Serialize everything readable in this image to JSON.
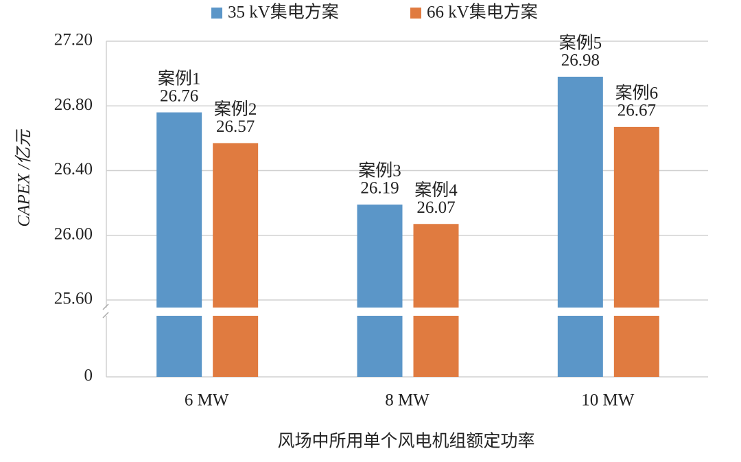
{
  "chart_data": {
    "type": "bar",
    "x_label": "风场中所用单个风电机组额定功率",
    "y_label": "CAPEX /亿元",
    "categories": [
      "6 MW",
      "8 MW",
      "10 MW"
    ],
    "series": [
      {
        "name": "35 kV集电方案",
        "color": "#5b96c8",
        "values": [
          26.76,
          26.19,
          26.98
        ],
        "point_labels": [
          "案例1",
          "案例3",
          "案例5"
        ]
      },
      {
        "name": "66 kV集电方案",
        "color": "#e07b40",
        "values": [
          26.57,
          26.07,
          26.67
        ],
        "point_labels": [
          "案例2",
          "案例4",
          "案例6"
        ]
      }
    ],
    "ylim": [
      0,
      27.2
    ],
    "yticks": [
      0,
      {
        "value": 25.6,
        "label": "25.60"
      },
      {
        "value": 26.0,
        "label": "26.00"
      },
      {
        "value": 26.4,
        "label": "26.40"
      },
      {
        "value": 26.8,
        "label": "26.80"
      },
      {
        "value": 27.2,
        "label": "27.20"
      }
    ],
    "y_axis_break": true,
    "grid": true,
    "legend": "top"
  }
}
